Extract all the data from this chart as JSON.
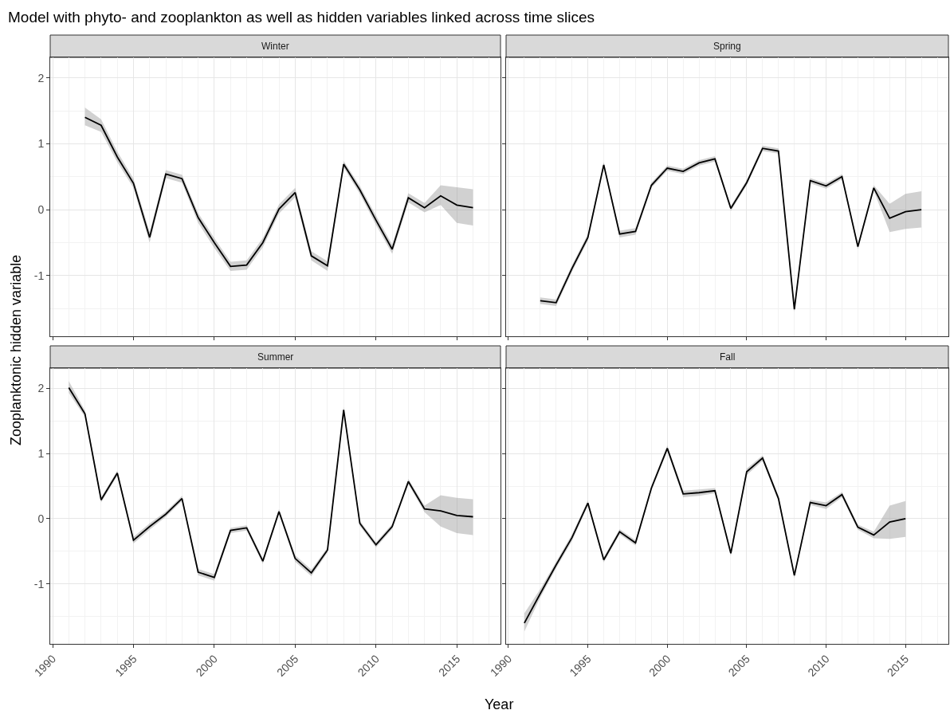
{
  "chart_data": [
    {
      "type": "line",
      "title": "Winter",
      "ylabel": "Zooplanktonic hidden variable",
      "annotations": [
        "Model with phyto- and zooplankton as well as hidden variables linked across time slices"
      ],
      "tick_labels": "y",
      "grid": true,
      "xlim": [
        1989.85,
        2017.7
      ],
      "xticks": [
        1990,
        1995,
        2000,
        2005,
        2010,
        2015
      ],
      "ylim": [
        -1.92,
        2.31
      ],
      "yticks": [
        -1,
        0,
        1,
        2
      ],
      "x": [
        1992,
        1993,
        1994,
        1995,
        1996,
        1997,
        1998,
        1999,
        2000,
        2001,
        2002,
        2003,
        2004,
        2005,
        2006,
        2007,
        2008,
        2009,
        2010,
        2011,
        2012,
        2013,
        2014,
        2015,
        2016
      ],
      "series": [
        {
          "color": "#000000",
          "values": [
            1.4,
            1.28,
            0.8,
            0.4,
            -0.42,
            0.54,
            0.47,
            -0.12,
            -0.5,
            -0.86,
            -0.84,
            -0.5,
            0.01,
            0.26,
            -0.7,
            -0.85,
            0.69,
            0.3,
            -0.16,
            -0.6,
            0.18,
            0.03,
            0.21,
            0.07,
            0.03
          ],
          "lower": [
            1.28,
            1.18,
            0.72,
            0.33,
            -0.5,
            0.48,
            0.41,
            -0.2,
            -0.58,
            -0.93,
            -0.91,
            -0.57,
            -0.06,
            0.19,
            -0.77,
            -0.93,
            0.64,
            0.24,
            -0.23,
            -0.67,
            0.11,
            -0.04,
            0.07,
            -0.2,
            -0.24
          ],
          "upper": [
            1.55,
            1.37,
            0.88,
            0.47,
            -0.34,
            0.6,
            0.53,
            -0.05,
            -0.43,
            -0.79,
            -0.77,
            -0.43,
            0.08,
            0.33,
            -0.63,
            -0.78,
            0.74,
            0.36,
            -0.09,
            -0.53,
            0.25,
            0.1,
            0.37,
            0.34,
            0.31
          ]
        }
      ]
    },
    {
      "type": "line",
      "title": "Spring",
      "tick_labels": false,
      "grid": true,
      "xlim": [
        1989.85,
        2017.7
      ],
      "xticks": [
        1990,
        1995,
        2000,
        2005,
        2010,
        2015
      ],
      "ylim": [
        -1.92,
        2.31
      ],
      "yticks": [
        -1,
        0,
        1,
        2
      ],
      "x": [
        1992,
        1993,
        1994,
        1995,
        1996,
        1997,
        1998,
        1999,
        2000,
        2001,
        2002,
        2003,
        2004,
        2005,
        2006,
        2007,
        2008,
        2009,
        2010,
        2011,
        2012,
        2013,
        2014,
        2015,
        2016
      ],
      "series": [
        {
          "color": "#000000",
          "values": [
            -1.38,
            -1.41,
            -0.89,
            -0.42,
            0.68,
            -0.37,
            -0.33,
            0.37,
            0.63,
            0.58,
            0.71,
            0.77,
            0.02,
            0.41,
            0.93,
            0.89,
            -1.51,
            0.44,
            0.36,
            0.5,
            -0.56,
            0.33,
            -0.13,
            -0.03,
            0.0
          ],
          "lower": [
            -1.43,
            -1.46,
            -0.94,
            -0.47,
            0.64,
            -0.42,
            -0.38,
            0.33,
            0.59,
            0.54,
            0.67,
            0.73,
            -0.02,
            0.37,
            0.89,
            0.85,
            -1.55,
            0.4,
            0.32,
            0.46,
            -0.6,
            0.29,
            -0.34,
            -0.29,
            -0.27
          ],
          "upper": [
            -1.33,
            -1.36,
            -0.84,
            -0.37,
            0.72,
            -0.32,
            -0.28,
            0.41,
            0.67,
            0.62,
            0.75,
            0.81,
            0.06,
            0.45,
            0.97,
            0.93,
            -1.47,
            0.48,
            0.4,
            0.54,
            -0.52,
            0.37,
            0.09,
            0.24,
            0.28
          ]
        }
      ]
    },
    {
      "type": "line",
      "title": "Summer",
      "xlabel": "Year",
      "grid": true,
      "xlim": [
        1989.85,
        2017.7
      ],
      "xticks": [
        1990,
        1995,
        2000,
        2005,
        2010,
        2015
      ],
      "ylim": [
        -1.92,
        2.31
      ],
      "yticks": [
        -1,
        0,
        1,
        2
      ],
      "x": [
        1991,
        1992,
        1993,
        1994,
        1995,
        1996,
        1997,
        1998,
        1999,
        2000,
        2001,
        2002,
        2003,
        2004,
        2005,
        2006,
        2007,
        2008,
        2009,
        2010,
        2011,
        2012,
        2013,
        2014,
        2015,
        2016
      ],
      "series": [
        {
          "color": "#000000",
          "values": [
            2.01,
            1.61,
            0.29,
            0.7,
            -0.33,
            -0.12,
            0.07,
            0.31,
            -0.82,
            -0.9,
            -0.18,
            -0.14,
            -0.65,
            0.11,
            -0.61,
            -0.83,
            -0.48,
            1.67,
            -0.07,
            -0.4,
            -0.12,
            0.57,
            0.15,
            0.12,
            0.05,
            0.03
          ],
          "lower": [
            1.93,
            1.56,
            0.25,
            0.66,
            -0.38,
            -0.17,
            0.03,
            0.27,
            -0.87,
            -0.95,
            -0.22,
            -0.18,
            -0.69,
            0.07,
            -0.66,
            -0.88,
            -0.52,
            1.63,
            -0.11,
            -0.44,
            -0.16,
            0.53,
            0.1,
            -0.12,
            -0.22,
            -0.25
          ],
          "upper": [
            2.11,
            1.66,
            0.33,
            0.74,
            -0.28,
            -0.07,
            0.11,
            0.35,
            -0.77,
            -0.85,
            -0.14,
            -0.1,
            -0.61,
            0.15,
            -0.56,
            -0.78,
            -0.44,
            1.71,
            -0.03,
            -0.36,
            -0.08,
            0.61,
            0.2,
            0.36,
            0.32,
            0.3
          ]
        }
      ]
    },
    {
      "type": "line",
      "title": "Fall",
      "tick_labels": "x",
      "grid": true,
      "xlim": [
        1989.85,
        2017.7
      ],
      "xticks": [
        1990,
        1995,
        2000,
        2005,
        2010,
        2015
      ],
      "ylim": [
        -1.92,
        2.31
      ],
      "yticks": [
        -1,
        0,
        1,
        2
      ],
      "x": [
        1991,
        1992,
        1993,
        1994,
        1995,
        1996,
        1997,
        1998,
        1999,
        2000,
        2001,
        2002,
        2003,
        2004,
        2005,
        2006,
        2007,
        2008,
        2009,
        2010,
        2011,
        2012,
        2013,
        2014,
        2015
      ],
      "series": [
        {
          "color": "#000000",
          "values": [
            -1.6,
            -1.15,
            -0.71,
            -0.29,
            0.24,
            -0.63,
            -0.2,
            -0.37,
            0.47,
            1.08,
            0.38,
            0.4,
            0.43,
            -0.53,
            0.72,
            0.93,
            0.31,
            -0.87,
            0.25,
            0.2,
            0.37,
            -0.13,
            -0.25,
            -0.05,
            0.0
          ],
          "lower": [
            -1.73,
            -1.21,
            -0.76,
            -0.34,
            0.2,
            -0.67,
            -0.24,
            -0.41,
            0.43,
            1.04,
            0.33,
            0.35,
            0.39,
            -0.57,
            0.67,
            0.89,
            0.27,
            -0.91,
            0.21,
            0.15,
            0.33,
            -0.17,
            -0.3,
            -0.31,
            -0.28
          ],
          "upper": [
            -1.45,
            -1.08,
            -0.66,
            -0.24,
            0.28,
            -0.59,
            -0.16,
            -0.33,
            0.51,
            1.12,
            0.43,
            0.45,
            0.47,
            -0.49,
            0.77,
            0.97,
            0.35,
            -0.83,
            0.29,
            0.25,
            0.41,
            -0.09,
            -0.2,
            0.2,
            0.27
          ]
        }
      ]
    }
  ]
}
